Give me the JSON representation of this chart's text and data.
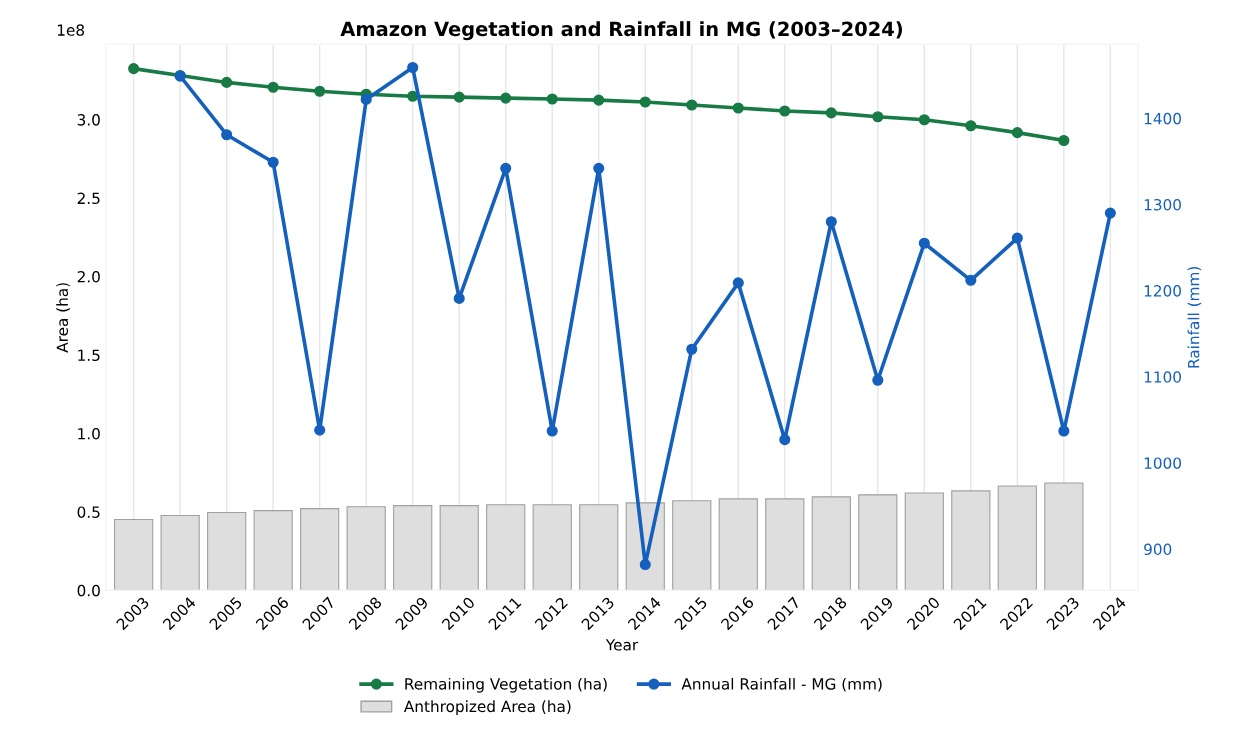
{
  "chart_data": {
    "type": "bar",
    "title": "Amazon Vegetation and Rainfall in MG (2003–2024)",
    "xlabel": "Year",
    "ylabel": "Area (ha)",
    "y2label": "Rainfall (mm)",
    "categories": [
      "2003",
      "2004",
      "2005",
      "2006",
      "2007",
      "2008",
      "2009",
      "2010",
      "2011",
      "2012",
      "2013",
      "2014",
      "2015",
      "2016",
      "2017",
      "2018",
      "2019",
      "2020",
      "2021",
      "2022",
      "2023",
      "2024"
    ],
    "series": [
      {
        "name": "Anthropized Area (ha)",
        "color": "#dedede",
        "values": [
          0.452,
          0.477,
          0.496,
          0.508,
          0.521,
          0.533,
          0.54,
          0.54,
          0.546,
          0.546,
          0.546,
          0.558,
          0.571,
          0.583,
          0.583,
          0.596,
          0.609,
          0.621,
          0.634,
          0.665,
          0.684,
          null
        ]
      },
      {
        "name": "Remaining Vegetation (ha)",
        "type": "line",
        "color": "#187a45",
        "marker": "circle",
        "values": [
          3.325,
          3.281,
          3.237,
          3.206,
          3.181,
          3.162,
          3.149,
          3.143,
          3.137,
          3.131,
          3.124,
          3.112,
          3.093,
          3.074,
          3.055,
          3.043,
          3.018,
          2.999,
          2.961,
          2.917,
          2.867,
          null
        ]
      },
      {
        "name": "Annual Rainfall - MG (mm)",
        "type": "line",
        "axis": "y2",
        "color": "#1560bd",
        "marker": "circle",
        "values": [
          null,
          1449,
          1381,
          1349,
          1038,
          1422,
          1459,
          1191,
          1342,
          1037,
          1342,
          882,
          1132,
          1209,
          1027,
          1280,
          1096,
          1255,
          1212,
          1261,
          1037,
          1290
        ]
      }
    ],
    "ylim": [
      0,
      3.48
    ],
    "yticks": [
      {
        "value": 0,
        "label": "0.0"
      },
      0.5,
      {
        "value": 1,
        "label": "1.0"
      },
      1.5,
      {
        "value": 2,
        "label": "2.0"
      },
      2.5,
      {
        "value": 3,
        "label": "3.0"
      }
    ],
    "y2lim": [
      852,
      1486
    ],
    "y2ticks": [
      900,
      1000,
      1100,
      1200,
      1300,
      1400
    ],
    "annotations": [
      "1e8"
    ],
    "grid": "x",
    "legend": "bottom"
  }
}
